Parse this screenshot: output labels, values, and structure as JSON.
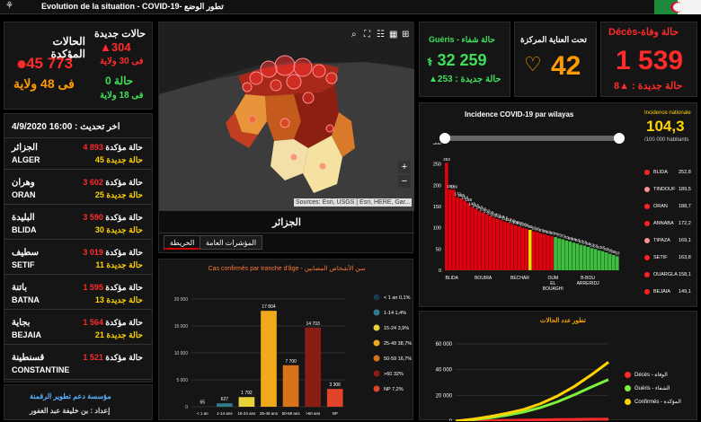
{
  "header": {
    "logo": "⚘",
    "title": "Evolution de la situation - COVID-19- تطور الوضع"
  },
  "confirmed_box": {
    "label": "الحالات المؤكدة",
    "total": "45 773",
    "wilayas": "فى 48 ولاية"
  },
  "new_cases_box": {
    "label": "حالات جديدة",
    "value": "304",
    "in_wilayas": "فى 30 ولاية",
    "zero_value": "0 حالة",
    "zero_wilayas": "فى 18 ولاية"
  },
  "update": "4/9/2020 16:00 : اخر تحديث",
  "wilaya_list": [
    {
      "ar": "الجزائر",
      "fr": "ALGER",
      "confirmed": "4 893",
      "conf_label": "حالة مؤكدة",
      "new": "45",
      "new_label": "حالة جديدة"
    },
    {
      "ar": "وهران",
      "fr": "ORAN",
      "confirmed": "3 602",
      "conf_label": "حالة مؤكدة",
      "new": "25",
      "new_label": "حالة جديدة"
    },
    {
      "ar": "البليدة",
      "fr": "BLIDA",
      "confirmed": "3 590",
      "conf_label": "حالة مؤكدة",
      "new": "30",
      "new_label": "حالة جديدة"
    },
    {
      "ar": "سطيف",
      "fr": "SETIF",
      "confirmed": "3 019",
      "conf_label": "حالة مؤكدة",
      "new": "11",
      "new_label": "حالة جديدة"
    },
    {
      "ar": "باتنة",
      "fr": "BATNA",
      "confirmed": "1 595",
      "conf_label": "حالة مؤكدة",
      "new": "13",
      "new_label": "حالة جديدة"
    },
    {
      "ar": "بجاية",
      "fr": "BEJAIA",
      "confirmed": "1 564",
      "conf_label": "حالة مؤكدة",
      "new": "21",
      "new_label": "حالة جديدة"
    },
    {
      "ar": "قسنطينة",
      "fr": "CONSTANTINE",
      "confirmed": "1 521",
      "conf_label": "حالة مؤكدة",
      "new": "",
      "new_label": ""
    }
  ],
  "footer": {
    "line1": "مؤسسة دعم تطوير الرقمنة",
    "line2": "إعداد : بن خليفة عبد الغفور"
  },
  "map": {
    "label": "الجزائر",
    "attribution": "Sources: Esri, USGS | Esri, HERE, Gar...",
    "zoom_in": "+",
    "zoom_out": "−"
  },
  "tabs": {
    "map": "الخريطة",
    "indicators": "المؤشرات العامة"
  },
  "recovered": {
    "label": "Guéris - حالة شفاء",
    "value": "32 259",
    "new": "253 : حالة جديدة",
    "color": "#3ee05a"
  },
  "icu": {
    "label": "تحت العناية المركزة",
    "value": "42",
    "color": "#ff9a00"
  },
  "deaths": {
    "label": "Décès-حالة وفاة",
    "value": "1 539",
    "new_label": "حالة جديدة :",
    "new_value": "8",
    "color": "#ff2b2b"
  },
  "incidence": {
    "title": "Incidence COVID-19 par wilayas",
    "nat_label": "Incidence nationale",
    "nat_value": "104,3",
    "nat_unit": "/100 000 habitants",
    "list": [
      {
        "name": "BLIDA",
        "value": "252,8"
      },
      {
        "name": "TINDOUF",
        "value": "189,5"
      },
      {
        "name": "ORAN",
        "value": "188,7"
      },
      {
        "name": "ANNABA",
        "value": "172,2"
      },
      {
        "name": "TIPAZA",
        "value": "169,1"
      },
      {
        "name": "SETIF",
        "value": "163,8"
      },
      {
        "name": "OUARGLA",
        "value": "158,1"
      },
      {
        "name": "BEJAIA",
        "value": "149,1"
      }
    ]
  },
  "chart_data": [
    {
      "type": "bar",
      "title": "Cas confirmés par tranche d'âge - سن الأشخاص المصابين",
      "categories": [
        "< 1 an",
        "1-14 ans",
        "15-24 ans",
        "25-49 ans",
        "50-59 ans",
        ">60 ans",
        "NP"
      ],
      "values": [
        65,
        627,
        1792,
        17804,
        7700,
        14703,
        3306
      ],
      "value_labels": [
        "65",
        "627",
        "1 792",
        "17 804",
        "7 700",
        "14 703",
        "3 306"
      ],
      "colors": [
        "#1a3a4a",
        "#2e7d8c",
        "#e8d23a",
        "#f0a81c",
        "#d9731a",
        "#8a1d14",
        "#e0442a"
      ],
      "yticks": [
        "0",
        "5 000",
        "10 000",
        "15 000",
        "20 000"
      ],
      "ylim": [
        0,
        20000
      ],
      "legend": [
        "< 1 an 0,1%",
        "1-14 1,4%",
        "15-24 3,9%",
        "25-49 38,7%",
        "50-59 16,7%",
        ">60 32%",
        "NP 7,2%"
      ]
    },
    {
      "type": "bar",
      "title": "Incidence COVID-19 par wilayas",
      "ylim": [
        0,
        300
      ],
      "yticks": [
        "0",
        "50",
        "100",
        "150",
        "200",
        "250",
        "300"
      ],
      "xlabels": [
        "BLIDA",
        "BOUIRA",
        "BECHAR",
        "OUM EL BOUAGHI",
        "B-BOU ARRERIDJ"
      ],
      "values": [
        253,
        190,
        189,
        172,
        169,
        164,
        158,
        149,
        145,
        140,
        136,
        132,
        128,
        124,
        121,
        118,
        115,
        112,
        109,
        106,
        103,
        100,
        98,
        95,
        92,
        90,
        87,
        85,
        82,
        80,
        78,
        75,
        73,
        70,
        68,
        65,
        63,
        60,
        58,
        55,
        52,
        50,
        47,
        45,
        42,
        39,
        36,
        33
      ],
      "colors": [
        "red",
        "red",
        "red",
        "red",
        "red",
        "red",
        "red",
        "red",
        "red",
        "red",
        "red",
        "red",
        "red",
        "red",
        "red",
        "red",
        "red",
        "red",
        "red",
        "red",
        "red",
        "red",
        "red",
        "yellow",
        "red",
        "red",
        "red",
        "red",
        "red",
        "red",
        "green",
        "green",
        "green",
        "green",
        "green",
        "green",
        "green",
        "green",
        "green",
        "green",
        "green",
        "green",
        "green",
        "green",
        "green",
        "green",
        "green",
        "green"
      ]
    },
    {
      "type": "line",
      "title": "تطور عدد الحالات",
      "yticks": [
        "0",
        "20 000",
        "40 000",
        "60 000"
      ],
      "ylim": [
        0,
        60000
      ],
      "series": [
        {
          "name": "Décès - الوفاة",
          "color": "#ff2b2b",
          "values": [
            0,
            200,
            400,
            600,
            800,
            1000,
            1200,
            1350,
            1450,
            1539
          ]
        },
        {
          "name": "Guéris - الشفاء",
          "color": "#7cf23a",
          "values": [
            0,
            1000,
            2500,
            4500,
            7000,
            10500,
            15000,
            20500,
            26500,
            32259
          ]
        },
        {
          "name": "Confirmés - المؤكدة",
          "color": "#ffd400",
          "values": [
            0,
            1500,
            3500,
            6000,
            9000,
            13500,
            19500,
            27000,
            36000,
            45773
          ]
        }
      ]
    }
  ]
}
